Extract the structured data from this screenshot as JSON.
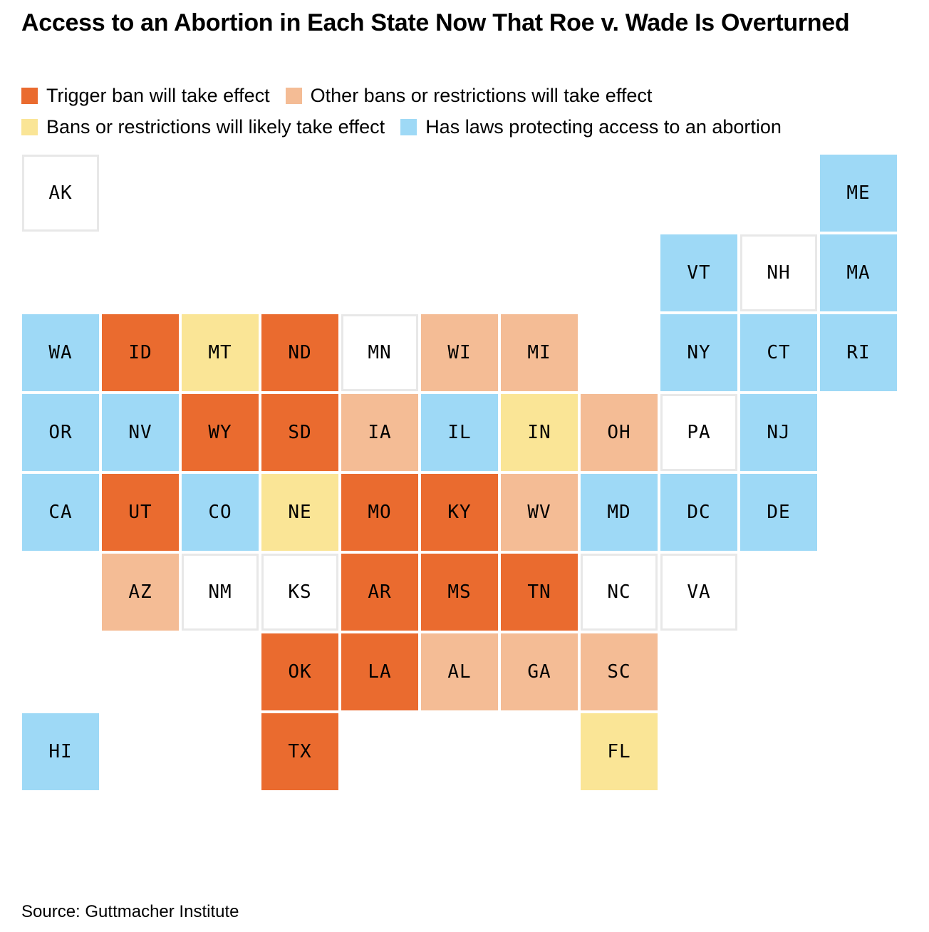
{
  "title": "Access to an Abortion in Each State Now That Roe v. Wade Is Overturned",
  "legend": [
    {
      "key": "trigger",
      "label": "Trigger ban will take effect",
      "color": "#ea6b2f"
    },
    {
      "key": "other",
      "label": "Other bans or restrictions will take effect",
      "color": "#f4bc95"
    },
    {
      "key": "likely",
      "label": "Bans or restrictions will likely take effect",
      "color": "#fae596"
    },
    {
      "key": "protect",
      "label": "Has laws protecting access to an abortion",
      "color": "#9ed9f6"
    }
  ],
  "no_status_color": "#ffffff",
  "states": [
    {
      "abbr": "AK",
      "row": 0,
      "col": 0,
      "status": "none"
    },
    {
      "abbr": "ME",
      "row": 0,
      "col": 10,
      "status": "protect"
    },
    {
      "abbr": "VT",
      "row": 1,
      "col": 8,
      "status": "protect"
    },
    {
      "abbr": "NH",
      "row": 1,
      "col": 9,
      "status": "none"
    },
    {
      "abbr": "MA",
      "row": 1,
      "col": 10,
      "status": "protect"
    },
    {
      "abbr": "WA",
      "row": 2,
      "col": 0,
      "status": "protect"
    },
    {
      "abbr": "ID",
      "row": 2,
      "col": 1,
      "status": "trigger"
    },
    {
      "abbr": "MT",
      "row": 2,
      "col": 2,
      "status": "likely"
    },
    {
      "abbr": "ND",
      "row": 2,
      "col": 3,
      "status": "trigger"
    },
    {
      "abbr": "MN",
      "row": 2,
      "col": 4,
      "status": "none"
    },
    {
      "abbr": "WI",
      "row": 2,
      "col": 5,
      "status": "other"
    },
    {
      "abbr": "MI",
      "row": 2,
      "col": 6,
      "status": "other"
    },
    {
      "abbr": "NY",
      "row": 2,
      "col": 8,
      "status": "protect"
    },
    {
      "abbr": "CT",
      "row": 2,
      "col": 9,
      "status": "protect"
    },
    {
      "abbr": "RI",
      "row": 2,
      "col": 10,
      "status": "protect"
    },
    {
      "abbr": "OR",
      "row": 3,
      "col": 0,
      "status": "protect"
    },
    {
      "abbr": "NV",
      "row": 3,
      "col": 1,
      "status": "protect"
    },
    {
      "abbr": "WY",
      "row": 3,
      "col": 2,
      "status": "trigger"
    },
    {
      "abbr": "SD",
      "row": 3,
      "col": 3,
      "status": "trigger"
    },
    {
      "abbr": "IA",
      "row": 3,
      "col": 4,
      "status": "other"
    },
    {
      "abbr": "IL",
      "row": 3,
      "col": 5,
      "status": "protect"
    },
    {
      "abbr": "IN",
      "row": 3,
      "col": 6,
      "status": "likely"
    },
    {
      "abbr": "OH",
      "row": 3,
      "col": 7,
      "status": "other"
    },
    {
      "abbr": "PA",
      "row": 3,
      "col": 8,
      "status": "none"
    },
    {
      "abbr": "NJ",
      "row": 3,
      "col": 9,
      "status": "protect"
    },
    {
      "abbr": "CA",
      "row": 4,
      "col": 0,
      "status": "protect"
    },
    {
      "abbr": "UT",
      "row": 4,
      "col": 1,
      "status": "trigger"
    },
    {
      "abbr": "CO",
      "row": 4,
      "col": 2,
      "status": "protect"
    },
    {
      "abbr": "NE",
      "row": 4,
      "col": 3,
      "status": "likely"
    },
    {
      "abbr": "MO",
      "row": 4,
      "col": 4,
      "status": "trigger"
    },
    {
      "abbr": "KY",
      "row": 4,
      "col": 5,
      "status": "trigger"
    },
    {
      "abbr": "WV",
      "row": 4,
      "col": 6,
      "status": "other"
    },
    {
      "abbr": "MD",
      "row": 4,
      "col": 7,
      "status": "protect"
    },
    {
      "abbr": "DC",
      "row": 4,
      "col": 8,
      "status": "protect"
    },
    {
      "abbr": "DE",
      "row": 4,
      "col": 9,
      "status": "protect"
    },
    {
      "abbr": "AZ",
      "row": 5,
      "col": 1,
      "status": "other"
    },
    {
      "abbr": "NM",
      "row": 5,
      "col": 2,
      "status": "none"
    },
    {
      "abbr": "KS",
      "row": 5,
      "col": 3,
      "status": "none"
    },
    {
      "abbr": "AR",
      "row": 5,
      "col": 4,
      "status": "trigger"
    },
    {
      "abbr": "MS",
      "row": 5,
      "col": 5,
      "status": "trigger"
    },
    {
      "abbr": "TN",
      "row": 5,
      "col": 6,
      "status": "trigger"
    },
    {
      "abbr": "NC",
      "row": 5,
      "col": 7,
      "status": "none"
    },
    {
      "abbr": "VA",
      "row": 5,
      "col": 8,
      "status": "none"
    },
    {
      "abbr": "OK",
      "row": 6,
      "col": 3,
      "status": "trigger"
    },
    {
      "abbr": "LA",
      "row": 6,
      "col": 4,
      "status": "trigger"
    },
    {
      "abbr": "AL",
      "row": 6,
      "col": 5,
      "status": "other"
    },
    {
      "abbr": "GA",
      "row": 6,
      "col": 6,
      "status": "other"
    },
    {
      "abbr": "SC",
      "row": 6,
      "col": 7,
      "status": "other"
    },
    {
      "abbr": "HI",
      "row": 7,
      "col": 0,
      "status": "protect"
    },
    {
      "abbr": "TX",
      "row": 7,
      "col": 3,
      "status": "trigger"
    },
    {
      "abbr": "FL",
      "row": 7,
      "col": 7,
      "status": "likely"
    }
  ],
  "source": "Source: Guttmacher Institute"
}
